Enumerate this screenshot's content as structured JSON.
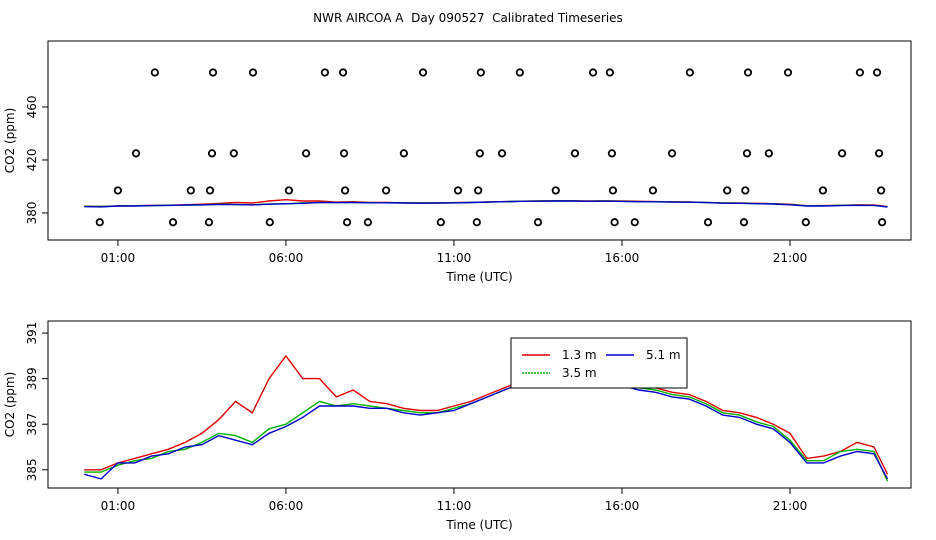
{
  "chart_data": [
    {
      "type": "line",
      "title": "NWR AIRCOA A  Day 090527  Calibrated Timeseries",
      "xlabel": "Time (UTC)",
      "ylabel": "CO2 (ppm)",
      "xlim": [
        -1.08,
        24.6
      ],
      "xticks": [
        {
          "value": 1,
          "label": "01:00"
        },
        {
          "value": 6,
          "label": "06:00"
        },
        {
          "value": 11,
          "label": "11:00"
        },
        {
          "value": 16,
          "label": "16:00"
        },
        {
          "value": 21,
          "label": "21:00"
        }
      ],
      "ylim": [
        359.6,
        509.8
      ],
      "yticks": [
        380,
        420,
        460
      ],
      "x": [
        0,
        0.5,
        1,
        1.5,
        2,
        2.5,
        3,
        3.5,
        4,
        4.5,
        5,
        5.5,
        6,
        6.5,
        7,
        7.5,
        8,
        8.5,
        9,
        9.5,
        10,
        10.5,
        11,
        11.5,
        12,
        12.5,
        13,
        13.5,
        14,
        14.5,
        15,
        15.5,
        16,
        16.5,
        17,
        17.5,
        18,
        18.5,
        19,
        19.5,
        20,
        20.5,
        21,
        21.5,
        22,
        22.5,
        23,
        23.5,
        23.9
      ],
      "series": [
        {
          "color": "#e00000",
          "values": [
            385.0,
            385.0,
            385.3,
            385.5,
            385.7,
            385.9,
            386.2,
            386.6,
            387.2,
            388.0,
            387.5,
            389.0,
            390.0,
            389.0,
            389.0,
            388.2,
            388.5,
            388.0,
            387.9,
            387.7,
            387.6,
            387.6,
            387.8,
            388.0,
            388.3,
            388.6,
            388.9,
            389.1,
            389.2,
            389.2,
            389.1,
            389.2,
            389.0,
            388.8,
            388.6,
            388.4,
            388.3,
            388.0,
            387.6,
            387.5,
            387.3,
            387.0,
            386.6,
            385.5,
            385.6,
            385.8,
            386.2,
            386.0,
            384.8
          ]
        },
        {
          "color": "#00b000",
          "values": [
            384.9,
            384.9,
            385.2,
            385.4,
            385.5,
            385.8,
            385.9,
            386.2,
            386.6,
            386.5,
            386.2,
            386.8,
            387.0,
            387.5,
            388.0,
            387.8,
            387.9,
            387.8,
            387.7,
            387.6,
            387.5,
            387.5,
            387.7,
            387.9,
            388.2,
            388.5,
            388.8,
            389.0,
            389.0,
            389.0,
            388.9,
            389.0,
            388.8,
            388.6,
            388.5,
            388.3,
            388.2,
            387.9,
            387.5,
            387.4,
            387.1,
            386.9,
            386.3,
            385.4,
            385.4,
            385.8,
            385.9,
            385.8,
            384.5
          ]
        },
        {
          "color": "#0000cc",
          "values": [
            384.8,
            384.6,
            385.3,
            385.3,
            385.6,
            385.7,
            386.0,
            386.1,
            386.5,
            386.3,
            386.1,
            386.6,
            386.9,
            387.3,
            387.8,
            387.8,
            387.8,
            387.7,
            387.7,
            387.5,
            387.4,
            387.5,
            387.6,
            387.9,
            388.2,
            388.5,
            388.8,
            388.9,
            389.0,
            389.0,
            388.8,
            388.9,
            388.7,
            388.5,
            388.4,
            388.2,
            388.1,
            387.8,
            387.4,
            387.3,
            387.0,
            386.8,
            386.2,
            385.3,
            385.3,
            385.6,
            385.8,
            385.7,
            384.6
          ]
        }
      ],
      "points": {
        "color": "#000000",
        "x": [
          2.1,
          3.83,
          5.02,
          7.16,
          7.7,
          10.08,
          11.8,
          12.96,
          15.14,
          15.64,
          18.02,
          19.75,
          20.94,
          23.08,
          23.59,
          1.54,
          3.8,
          4.45,
          6.6,
          7.73,
          9.51,
          11.77,
          12.43,
          14.6,
          15.7,
          17.49,
          19.72,
          20.37,
          22.55,
          23.65,
          1.0,
          3.17,
          3.74,
          6.09,
          7.76,
          8.98,
          11.12,
          11.72,
          14.03,
          15.73,
          16.92,
          19.13,
          19.67,
          21.98,
          23.71,
          0.46,
          2.64,
          3.71,
          5.52,
          7.82,
          8.44,
          10.61,
          11.68,
          13.5,
          15.78,
          16.38,
          18.56,
          19.63,
          21.47,
          23.74
        ],
        "y": [
          486,
          486,
          486,
          486,
          486,
          486,
          486,
          486,
          486,
          486,
          486,
          486,
          486,
          486,
          486,
          425,
          425,
          425,
          425,
          425,
          425,
          425,
          425,
          425,
          425,
          425,
          425,
          425,
          425,
          425,
          397,
          397,
          397,
          397,
          397,
          397,
          397,
          397,
          397,
          397,
          397,
          397,
          397,
          397,
          397,
          373,
          373,
          373,
          373,
          373,
          373,
          373,
          373,
          373,
          373,
          373,
          373,
          373,
          373,
          373
        ]
      }
    },
    {
      "type": "line",
      "xlabel": "Time (UTC)",
      "ylabel": "CO2 (ppm)",
      "xlim": [
        -1.08,
        24.6
      ],
      "xticks": [
        {
          "value": 1,
          "label": "01:00"
        },
        {
          "value": 6,
          "label": "06:00"
        },
        {
          "value": 11,
          "label": "11:00"
        },
        {
          "value": 16,
          "label": "16:00"
        },
        {
          "value": 21,
          "label": "21:00"
        }
      ],
      "ylim": [
        384.2,
        391.53
      ],
      "yticks": [
        385,
        387,
        389,
        391
      ],
      "x": [
        0,
        0.5,
        1,
        1.5,
        2,
        2.5,
        3,
        3.5,
        4,
        4.5,
        5,
        5.5,
        6,
        6.5,
        7,
        7.5,
        8,
        8.5,
        9,
        9.5,
        10,
        10.5,
        11,
        11.5,
        12,
        12.5,
        13,
        13.5,
        14,
        14.5,
        15,
        15.5,
        16,
        16.5,
        17,
        17.5,
        18,
        18.5,
        19,
        19.5,
        20,
        20.5,
        21,
        21.5,
        22,
        22.5,
        23,
        23.5,
        23.9
      ],
      "series": [
        {
          "name": "1.3 m",
          "color": "#e00000",
          "values": [
            385.0,
            385.0,
            385.3,
            385.5,
            385.7,
            385.9,
            386.2,
            386.6,
            387.2,
            388.0,
            387.5,
            389.0,
            390.0,
            389.0,
            389.0,
            388.2,
            388.5,
            388.0,
            387.9,
            387.7,
            387.6,
            387.6,
            387.8,
            388.0,
            388.3,
            388.6,
            388.9,
            389.1,
            389.2,
            389.2,
            389.1,
            389.2,
            389.0,
            388.8,
            388.6,
            388.4,
            388.3,
            388.0,
            387.6,
            387.5,
            387.3,
            387.0,
            386.6,
            385.5,
            385.6,
            385.8,
            386.2,
            386.0,
            384.8
          ]
        },
        {
          "name": "3.5 m",
          "color": "#00b000",
          "values": [
            384.9,
            384.9,
            385.2,
            385.4,
            385.5,
            385.8,
            385.9,
            386.2,
            386.6,
            386.5,
            386.2,
            386.8,
            387.0,
            387.5,
            388.0,
            387.8,
            387.9,
            387.8,
            387.7,
            387.6,
            387.5,
            387.5,
            387.7,
            387.9,
            388.2,
            388.5,
            388.8,
            389.0,
            389.0,
            389.0,
            388.9,
            389.0,
            388.8,
            388.6,
            388.5,
            388.3,
            388.2,
            387.9,
            387.5,
            387.4,
            387.1,
            386.9,
            386.3,
            385.4,
            385.4,
            385.8,
            385.9,
            385.8,
            384.5
          ]
        },
        {
          "name": "5.1 m",
          "color": "#0000cc",
          "values": [
            384.8,
            384.6,
            385.3,
            385.3,
            385.6,
            385.7,
            386.0,
            386.1,
            386.5,
            386.3,
            386.1,
            386.6,
            386.9,
            387.3,
            387.8,
            387.8,
            387.8,
            387.7,
            387.7,
            387.5,
            387.4,
            387.5,
            387.6,
            387.9,
            388.2,
            388.5,
            388.8,
            388.9,
            389.0,
            389.0,
            388.8,
            388.9,
            388.7,
            388.5,
            388.4,
            388.2,
            388.1,
            387.8,
            387.4,
            387.3,
            387.0,
            386.8,
            386.2,
            385.3,
            385.3,
            385.6,
            385.8,
            385.7,
            384.6
          ]
        }
      ]
    }
  ]
}
